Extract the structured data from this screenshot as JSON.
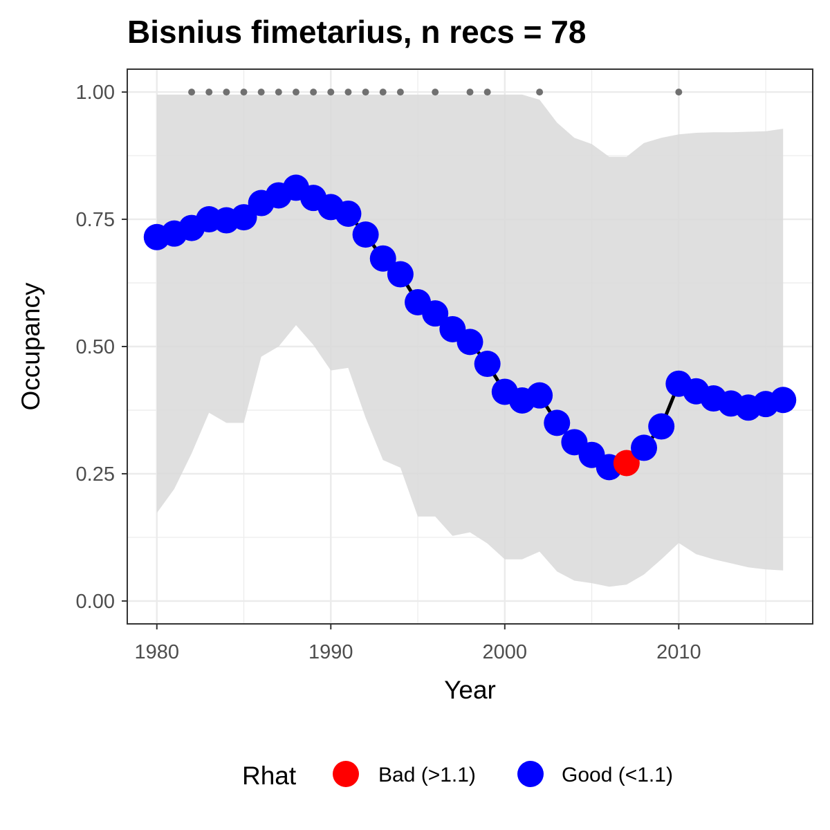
{
  "chart_data": {
    "type": "line",
    "title": "Bisnius fimetarius, n recs = 78",
    "xlabel": "Year",
    "ylabel": "Occupancy",
    "xlim": [
      1978.3,
      2017.7
    ],
    "ylim": [
      -0.045,
      1.045
    ],
    "x_ticks": [
      1980,
      1990,
      2000,
      2010
    ],
    "x_tick_labels": [
      "1980",
      "1990",
      "2000",
      "2010"
    ],
    "y_ticks": [
      0,
      0.25,
      0.5,
      0.75,
      1.0
    ],
    "y_tick_labels": [
      "0.00",
      "0.25",
      "0.50",
      "0.75",
      "1.00"
    ],
    "grid": true,
    "legend_position": "bottom",
    "legend": {
      "title": "Rhat",
      "entries": [
        {
          "label": "Bad (>1.1)",
          "color": "#ff0000"
        },
        {
          "label": "Good (<1.1)",
          "color": "#0000ff"
        }
      ]
    },
    "colors": {
      "good": "#0000ff",
      "bad": "#ff0000",
      "line": "#000000",
      "ribbon": "#d9d9d9",
      "record_dots": "#707070",
      "grid": "#ebebeb",
      "panel_border": "#333333"
    },
    "series": [
      {
        "x": [
          1980,
          1981,
          1982,
          1983,
          1984,
          1985,
          1986,
          1987,
          1988,
          1989,
          1990,
          1991,
          1992,
          1993,
          1994,
          1995,
          1996,
          1997,
          1998,
          1999,
          2000,
          2001,
          2002,
          2003,
          2004,
          2005,
          2006,
          2007,
          2008,
          2009,
          2010,
          2011,
          2012,
          2013,
          2014,
          2015,
          2016
        ],
        "y": [
          0.715,
          0.722,
          0.733,
          0.75,
          0.748,
          0.754,
          0.782,
          0.797,
          0.812,
          0.792,
          0.774,
          0.761,
          0.72,
          0.673,
          0.642,
          0.587,
          0.565,
          0.534,
          0.509,
          0.466,
          0.411,
          0.394,
          0.404,
          0.35,
          0.312,
          0.287,
          0.263,
          0.271,
          0.301,
          0.343,
          0.427,
          0.412,
          0.398,
          0.388,
          0.38,
          0.387,
          0.395
        ],
        "rhat": [
          "Good",
          "Good",
          "Good",
          "Good",
          "Good",
          "Good",
          "Good",
          "Good",
          "Good",
          "Good",
          "Good",
          "Good",
          "Good",
          "Good",
          "Good",
          "Good",
          "Good",
          "Good",
          "Good",
          "Good",
          "Good",
          "Good",
          "Good",
          "Good",
          "Good",
          "Good",
          "Good",
          "Bad",
          "Good",
          "Good",
          "Good",
          "Good",
          "Good",
          "Good",
          "Good",
          "Good",
          "Good"
        ],
        "upper": [
          0.995,
          0.995,
          0.995,
          0.995,
          0.995,
          0.995,
          0.995,
          0.995,
          0.995,
          0.995,
          0.995,
          0.995,
          0.995,
          0.995,
          0.995,
          0.995,
          0.995,
          0.995,
          0.995,
          0.995,
          0.995,
          0.995,
          0.985,
          0.94,
          0.91,
          0.898,
          0.873,
          0.873,
          0.9,
          0.91,
          0.917,
          0.92,
          0.921,
          0.921,
          0.922,
          0.923,
          0.928
        ],
        "lower": [
          0.173,
          0.22,
          0.29,
          0.37,
          0.35,
          0.35,
          0.48,
          0.5,
          0.542,
          0.503,
          0.453,
          0.458,
          0.36,
          0.277,
          0.262,
          0.166,
          0.166,
          0.128,
          0.135,
          0.113,
          0.082,
          0.082,
          0.097,
          0.058,
          0.04,
          0.035,
          0.028,
          0.032,
          0.052,
          0.082,
          0.114,
          0.092,
          0.082,
          0.074,
          0.066,
          0.062,
          0.06
        ]
      }
    ],
    "record_years": [
      1982,
      1983,
      1984,
      1985,
      1986,
      1987,
      1988,
      1989,
      1990,
      1991,
      1992,
      1993,
      1994,
      1996,
      1998,
      1999,
      2002,
      2010
    ],
    "record_y": 1.0
  }
}
